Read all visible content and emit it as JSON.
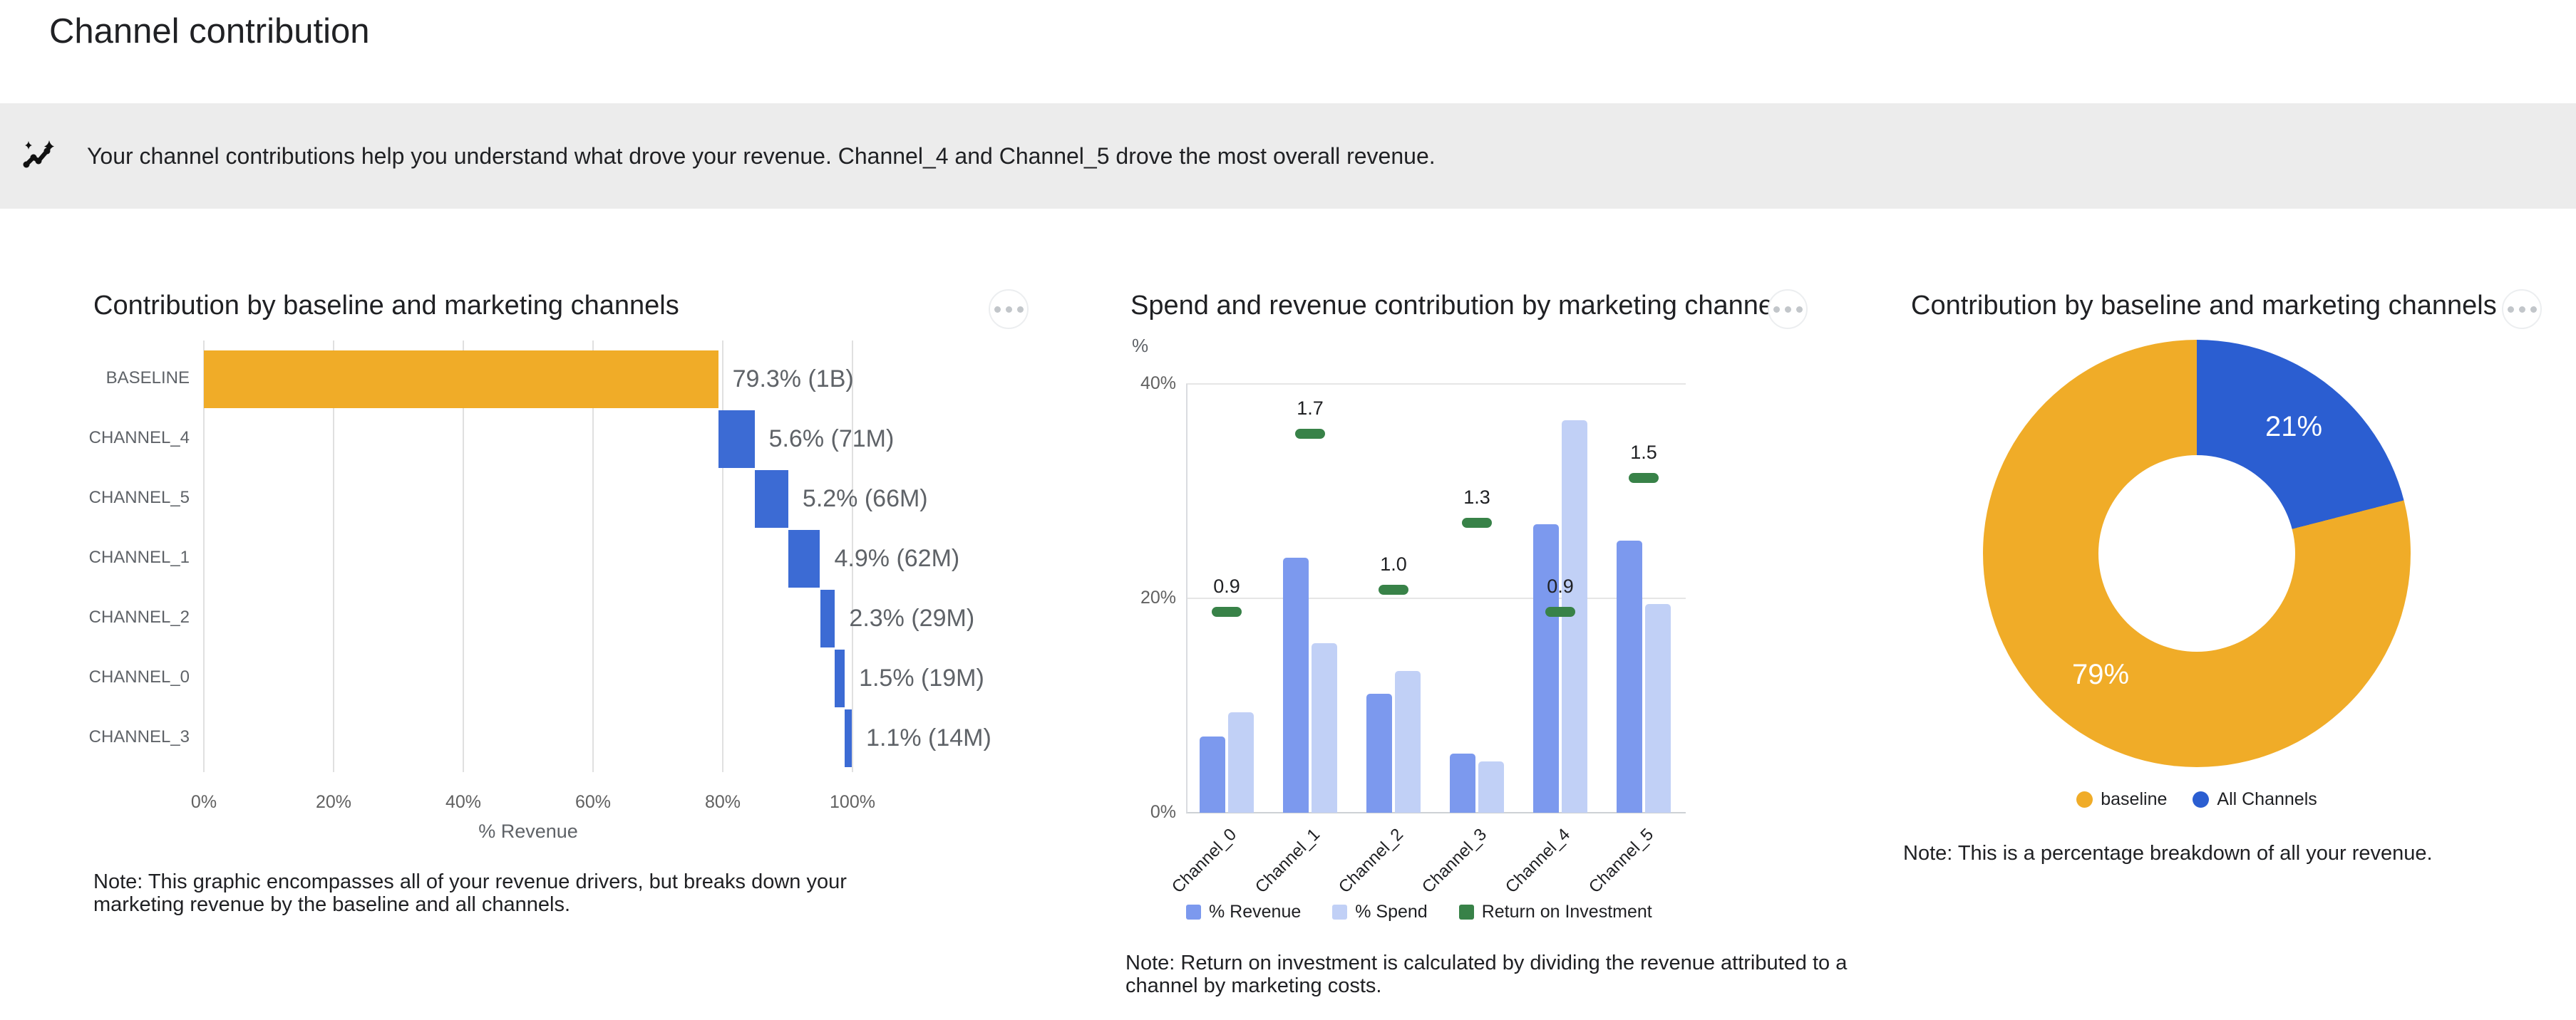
{
  "page": {
    "title": "Channel contribution"
  },
  "banner": {
    "text": "Your channel contributions help you understand what drove your revenue. Channel_4 and Channel_5 drove the most overall revenue."
  },
  "chart_data": [
    {
      "type": "bar",
      "subtype": "horizontal-waterfall",
      "title": "Contribution by baseline and marketing channels",
      "categories": [
        "BASELINE",
        "CHANNEL_4",
        "CHANNEL_5",
        "CHANNEL_1",
        "CHANNEL_2",
        "CHANNEL_0",
        "CHANNEL_3"
      ],
      "values_pct": [
        79.3,
        5.6,
        5.2,
        4.9,
        2.3,
        1.5,
        1.1
      ],
      "value_labels": [
        "79.3% (1B)",
        "5.6% (71M)",
        "5.2% (66M)",
        "4.9% (62M)",
        "2.3% (29M)",
        "1.5% (19M)",
        "1.1% (14M)"
      ],
      "xlabel": "% Revenue",
      "x_ticks": [
        "0%",
        "20%",
        "40%",
        "60%",
        "80%",
        "100%"
      ],
      "xlim": [
        0,
        100
      ],
      "grid": true,
      "colors": {
        "baseline": "#F0AC28",
        "channels": "#3C6BD4"
      },
      "note_lines": [
        "Note: This graphic encompasses all of your revenue drivers, but breaks down your",
        "marketing revenue by the baseline and all channels."
      ]
    },
    {
      "type": "bar",
      "subtype": "grouped-vertical-with-roi-markers",
      "title": "Spend and revenue contribution by marketing channel",
      "categories": [
        "Channel_0",
        "Channel_1",
        "Channel_2",
        "Channel_3",
        "Channel_4",
        "Channel_5"
      ],
      "series": [
        {
          "name": "% Revenue",
          "values": [
            7.1,
            23.8,
            11.1,
            5.5,
            26.9,
            25.4
          ],
          "color": "#7C99EE"
        },
        {
          "name": "% Spend",
          "values": [
            9.4,
            15.8,
            13.2,
            4.8,
            36.6,
            19.5
          ],
          "color": "#C1D0F6"
        },
        {
          "name": "Return on Investment",
          "values": [
            0.9,
            1.7,
            1.0,
            1.3,
            0.9,
            1.5
          ],
          "color": "#388248",
          "style": "dash-marker"
        }
      ],
      "ylabel": "%",
      "y_ticks": [
        "0%",
        "20%",
        "40%"
      ],
      "ylim": [
        0,
        40
      ],
      "roi_pct_per_unit": 20.8,
      "legend_position": "bottom",
      "grid": true,
      "note_lines": [
        "Note: Return on investment is calculated by dividing the revenue attributed to a",
        "channel by marketing costs."
      ]
    },
    {
      "type": "pie",
      "subtype": "donut",
      "title": "Contribution by baseline and marketing channels",
      "labels": [
        "baseline",
        "All Channels"
      ],
      "values_pct": [
        79,
        21
      ],
      "colors": [
        "#F0AC28",
        "#2B5ED1"
      ],
      "slice_labels": [
        "79%",
        "21%"
      ],
      "legend_position": "bottom",
      "note": "Note: This is a percentage breakdown of all your revenue."
    }
  ]
}
